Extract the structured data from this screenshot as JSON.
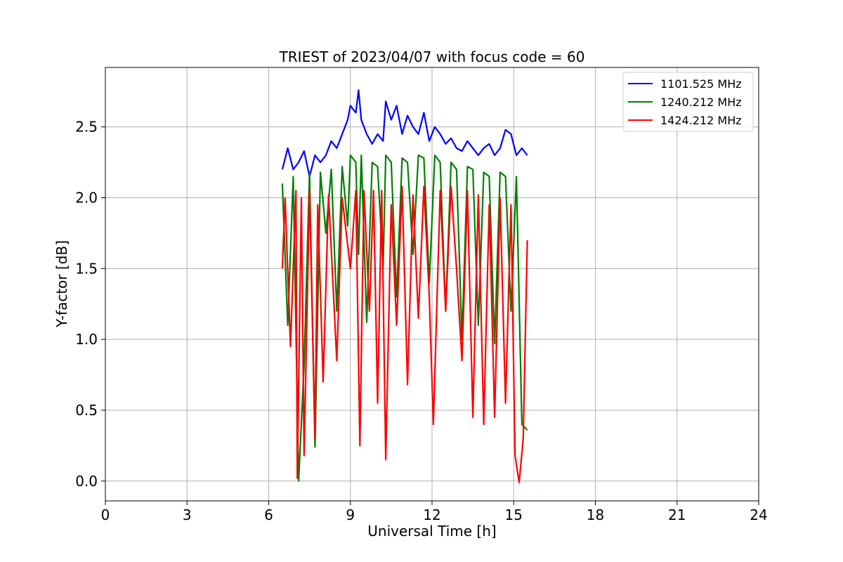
{
  "chart_data": {
    "type": "line",
    "title": "TRIEST of 2023/04/07 with focus code = 60",
    "xlabel": "Universal Time [h]",
    "ylabel": "Y-factor [dB]",
    "xlim": [
      0,
      24
    ],
    "ylim": [
      -0.14,
      2.92
    ],
    "xticks": [
      0,
      3,
      6,
      9,
      12,
      15,
      18,
      21,
      24
    ],
    "yticks": [
      0.0,
      0.5,
      1.0,
      1.5,
      2.0,
      2.5
    ],
    "xtick_labels": [
      "0",
      "3",
      "6",
      "9",
      "12",
      "15",
      "18",
      "21",
      "24"
    ],
    "ytick_labels": [
      "0.0",
      "0.5",
      "1.0",
      "1.5",
      "2.0",
      "2.5"
    ],
    "grid": true,
    "legend_position": "top-right",
    "series": [
      {
        "name": "1101.525 MHz",
        "color": "#0000ff",
        "x": [
          6.5,
          6.7,
          6.9,
          7.1,
          7.3,
          7.5,
          7.7,
          7.9,
          8.1,
          8.3,
          8.5,
          8.7,
          8.9,
          9.0,
          9.2,
          9.3,
          9.4,
          9.6,
          9.8,
          10.0,
          10.2,
          10.3,
          10.5,
          10.7,
          10.9,
          11.1,
          11.3,
          11.5,
          11.7,
          11.9,
          12.1,
          12.3,
          12.5,
          12.7,
          12.9,
          13.1,
          13.3,
          13.5,
          13.7,
          13.9,
          14.1,
          14.3,
          14.5,
          14.7,
          14.9,
          15.1,
          15.3,
          15.5
        ],
        "y": [
          2.2,
          2.35,
          2.2,
          2.25,
          2.33,
          2.15,
          2.3,
          2.25,
          2.3,
          2.4,
          2.35,
          2.45,
          2.55,
          2.65,
          2.6,
          2.76,
          2.55,
          2.45,
          2.38,
          2.45,
          2.4,
          2.68,
          2.55,
          2.65,
          2.45,
          2.58,
          2.5,
          2.45,
          2.6,
          2.4,
          2.5,
          2.45,
          2.38,
          2.42,
          2.35,
          2.33,
          2.4,
          2.35,
          2.3,
          2.35,
          2.38,
          2.3,
          2.35,
          2.48,
          2.45,
          2.3,
          2.35,
          2.3
        ]
      },
      {
        "name": "1240.212 MHz",
        "color": "#008000",
        "x": [
          6.5,
          6.7,
          6.9,
          7.1,
          7.3,
          7.5,
          7.7,
          7.9,
          8.1,
          8.3,
          8.5,
          8.7,
          8.9,
          9.0,
          9.2,
          9.3,
          9.4,
          9.6,
          9.8,
          10.0,
          10.2,
          10.3,
          10.5,
          10.7,
          10.9,
          11.1,
          11.3,
          11.5,
          11.7,
          11.9,
          12.1,
          12.3,
          12.5,
          12.7,
          12.9,
          13.1,
          13.3,
          13.5,
          13.7,
          13.9,
          14.1,
          14.3,
          14.5,
          14.7,
          14.9,
          15.1,
          15.3,
          15.5
        ],
        "y": [
          2.1,
          1.1,
          2.15,
          0.0,
          0.82,
          2.18,
          0.24,
          2.18,
          1.75,
          2.2,
          1.2,
          2.22,
          1.8,
          2.3,
          2.25,
          1.6,
          2.3,
          1.12,
          2.25,
          2.22,
          1.5,
          2.3,
          2.25,
          1.3,
          2.28,
          2.25,
          1.6,
          2.3,
          2.28,
          1.4,
          2.3,
          2.25,
          1.2,
          2.25,
          2.2,
          1.0,
          2.22,
          2.2,
          1.1,
          2.18,
          2.15,
          0.97,
          2.18,
          2.15,
          1.2,
          2.15,
          0.4,
          0.36
        ]
      },
      {
        "name": "1424.212 MHz",
        "color": "#ff0000",
        "x": [
          6.5,
          6.6,
          6.8,
          7.0,
          7.05,
          7.2,
          7.3,
          7.5,
          7.7,
          7.8,
          8.0,
          8.2,
          8.5,
          8.7,
          9.0,
          9.2,
          9.35,
          9.5,
          9.7,
          9.85,
          10.0,
          10.15,
          10.3,
          10.5,
          10.7,
          10.9,
          11.1,
          11.3,
          11.5,
          11.7,
          11.9,
          12.05,
          12.3,
          12.5,
          12.7,
          12.9,
          13.1,
          13.3,
          13.5,
          13.7,
          13.9,
          14.1,
          14.3,
          14.5,
          14.7,
          14.9,
          15.05,
          15.2,
          15.35,
          15.5
        ],
        "y": [
          1.5,
          2.0,
          0.95,
          2.05,
          0.02,
          2.0,
          0.18,
          2.05,
          0.3,
          1.95,
          0.7,
          2.02,
          0.85,
          2.0,
          1.5,
          2.05,
          0.25,
          2.05,
          1.2,
          2.05,
          0.55,
          2.05,
          0.15,
          1.95,
          1.1,
          2.08,
          0.68,
          2.02,
          1.15,
          2.08,
          1.3,
          0.4,
          2.05,
          1.2,
          2.08,
          1.5,
          0.85,
          2.05,
          0.45,
          2.02,
          0.4,
          1.95,
          0.45,
          2.0,
          0.55,
          1.95,
          0.18,
          -0.01,
          0.3,
          1.7
        ]
      }
    ]
  }
}
